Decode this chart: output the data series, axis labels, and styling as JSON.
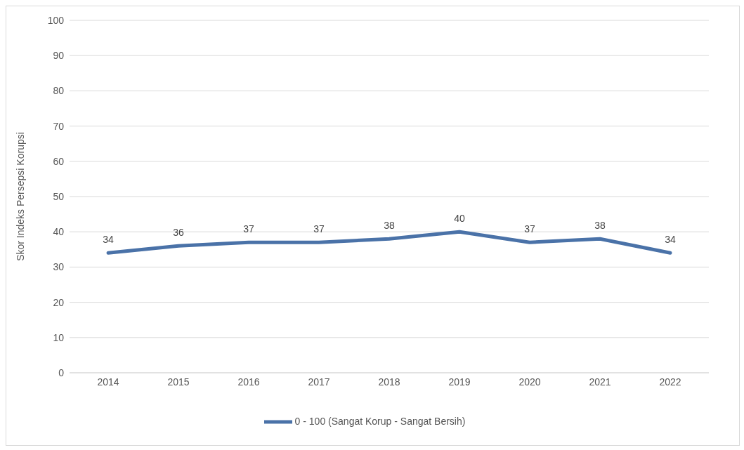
{
  "chart_data": {
    "type": "line",
    "ylabel": "Skor Indeks Persepsi Korupsi",
    "categories": [
      "2014",
      "2015",
      "2016",
      "2017",
      "2018",
      "2019",
      "2020",
      "2021",
      "2022"
    ],
    "series": [
      {
        "name": "0 - 100 (Sangat Korup - Sangat Bersih)",
        "color": "#4a72a8",
        "values": [
          34,
          36,
          37,
          37,
          38,
          40,
          37,
          38,
          34
        ]
      }
    ],
    "ylim": [
      0,
      100
    ],
    "yticks": [
      0,
      10,
      20,
      30,
      40,
      50,
      60,
      70,
      80,
      90,
      100
    ],
    "grid": "y",
    "legend": "bottom",
    "data_labels": true,
    "marker": "none",
    "line_style": "solid"
  }
}
